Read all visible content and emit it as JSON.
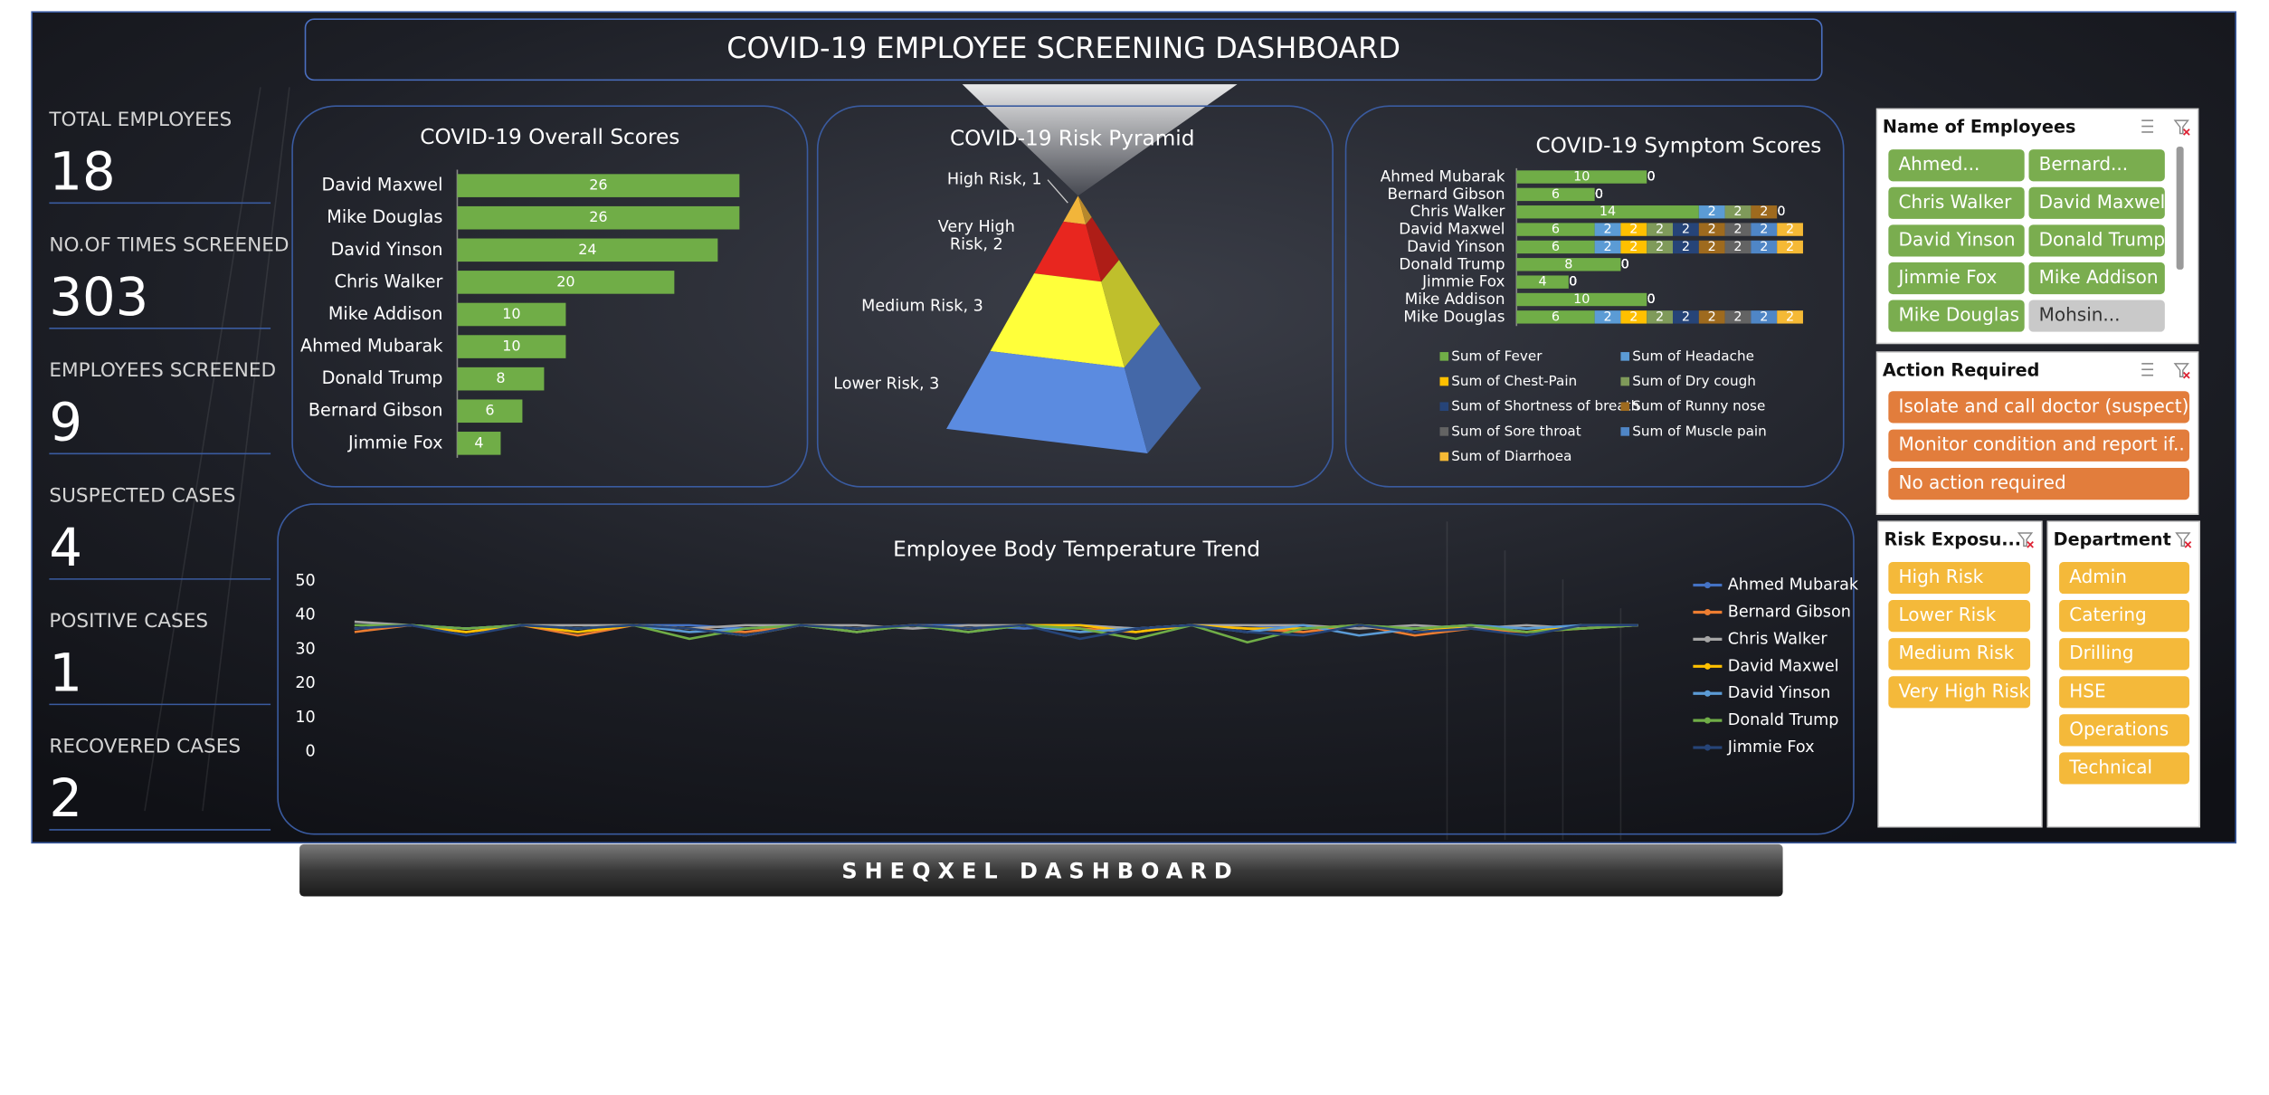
{
  "header": {
    "title": "COVID-19 EMPLOYEE SCREENING DASHBOARD"
  },
  "footer": {
    "title": "SHEQXEL DASHBOARD"
  },
  "kpis": [
    {
      "label": "TOTAL EMPLOYEES",
      "value": 18
    },
    {
      "label": "NO.OF TIMES SCREENED",
      "value": 303
    },
    {
      "label": "EMPLOYEES SCREENED",
      "value": 9
    },
    {
      "label": "SUSPECTED CASES",
      "value": 4
    },
    {
      "label": "POSITIVE CASES",
      "value": 1
    },
    {
      "label": "RECOVERED CASES",
      "value": 2
    }
  ],
  "chart_data": [
    {
      "type": "bar",
      "orientation": "horizontal",
      "title": "COVID-19 Overall Scores",
      "categories": [
        "David Maxwel",
        "Mike Douglas",
        "David Yinson",
        "Chris Walker",
        "Mike Addison",
        "Ahmed Mubarak",
        "Donald Trump",
        "Bernard Gibson",
        "Jimmie Fox"
      ],
      "values": [
        26,
        26,
        24,
        20,
        10,
        10,
        8,
        6,
        4
      ],
      "color": "#70ad47"
    },
    {
      "type": "pyramid",
      "title": "COVID-19 Risk Pyramid",
      "values": [
        1,
        2,
        3,
        3
      ],
      "value_labels": [
        "High Risk, 1",
        "Very High Risk, 2",
        "Medium Risk, 3",
        "Lower Risk, 3"
      ],
      "colors": [
        "#f2b53a",
        "#e8261f",
        "#ffff3a",
        "#5b8be0"
      ]
    },
    {
      "type": "stacked-bar",
      "orientation": "horizontal",
      "title": "COVID-19 Symptom Scores",
      "categories": [
        "Ahmed Mubarak",
        "Bernard Gibson",
        "Chris Walker",
        "David Maxwel",
        "David Yinson",
        "Donald Trump",
        "Jimmie Fox",
        "Mike Addison",
        "Mike Douglas"
      ],
      "series": [
        {
          "name": "Sum of Fever",
          "color": "#70ad47",
          "values": [
            10,
            6,
            14,
            6,
            6,
            8,
            4,
            10,
            6
          ]
        },
        {
          "name": "Sum of Headache",
          "color": "#5b9bd5",
          "values": [
            0,
            0,
            2,
            2,
            2,
            0,
            0,
            0,
            2
          ]
        },
        {
          "name": "Sum of Chest-Pain",
          "color": "#ffc000",
          "values": [
            0,
            0,
            0,
            2,
            2,
            0,
            0,
            0,
            2
          ]
        },
        {
          "name": "Sum of Dry cough",
          "color": "#7f9a5a",
          "values": [
            0,
            0,
            2,
            2,
            2,
            0,
            0,
            0,
            2
          ]
        },
        {
          "name": "Sum of Shortness of breath",
          "color": "#264478",
          "values": [
            0,
            0,
            0,
            2,
            2,
            0,
            0,
            0,
            2
          ]
        },
        {
          "name": "Sum of Runny nose",
          "color": "#9e6a1e",
          "values": [
            0,
            0,
            2,
            2,
            2,
            0,
            0,
            0,
            2
          ]
        },
        {
          "name": "Sum of Sore throat",
          "color": "#636363",
          "values": [
            0,
            0,
            0,
            2,
            2,
            0,
            0,
            0,
            2
          ]
        },
        {
          "name": "Sum of Muscle pain",
          "color": "#4f86c6",
          "values": [
            0,
            0,
            0,
            2,
            2,
            0,
            0,
            0,
            2
          ]
        },
        {
          "name": "Sum of Diarrhoea",
          "color": "#f5b935",
          "values": [
            0,
            0,
            0,
            2,
            2,
            0,
            0,
            0,
            2
          ]
        }
      ]
    },
    {
      "type": "line",
      "title": "Employee Body Temperature Trend",
      "ylim": [
        0,
        50
      ],
      "yticks": [
        0,
        10,
        20,
        30,
        40,
        50
      ],
      "series": [
        {
          "name": "Ahmed Mubarak",
          "color": "#4472c4",
          "values": [
            37,
            37,
            36,
            37,
            36,
            37,
            37,
            36,
            37,
            36,
            37,
            37,
            36,
            37,
            36,
            37,
            37,
            36,
            37,
            36,
            37,
            36,
            37,
            37
          ]
        },
        {
          "name": "Bernard Gibson",
          "color": "#ed7d31",
          "values": [
            35,
            37,
            35,
            37,
            34,
            37,
            36,
            35,
            37,
            35,
            37,
            36,
            37,
            36,
            35,
            37,
            36,
            35,
            37,
            34,
            36,
            35,
            36,
            37
          ]
        },
        {
          "name": "Chris Walker",
          "color": "#a5a5a5",
          "values": [
            38,
            37,
            36,
            37,
            37,
            37,
            36,
            37,
            37,
            37,
            36,
            37,
            37,
            37,
            36,
            37,
            37,
            37,
            36,
            37,
            36,
            37,
            36,
            37
          ]
        },
        {
          "name": "David Maxwel",
          "color": "#ffc000",
          "values": [
            36,
            37,
            35,
            37,
            35,
            37,
            36,
            34,
            37,
            36,
            37,
            36,
            37,
            37,
            35,
            37,
            36,
            36,
            37,
            35,
            37,
            35,
            37,
            37
          ]
        },
        {
          "name": "David Yinson",
          "color": "#5b9bd5",
          "values": [
            36,
            37,
            36,
            37,
            36,
            37,
            35,
            36,
            37,
            35,
            37,
            35,
            37,
            35,
            36,
            37,
            35,
            37,
            34,
            36,
            37,
            36,
            37,
            37
          ]
        },
        {
          "name": "Donald Trump",
          "color": "#70ad47",
          "values": [
            37,
            37,
            36,
            37,
            36,
            37,
            33,
            36,
            37,
            35,
            37,
            35,
            37,
            36,
            33,
            37,
            32,
            36,
            37,
            36,
            37,
            35,
            36,
            37
          ]
        },
        {
          "name": "Jimmie Fox",
          "color": "#264478",
          "values": [
            36,
            37,
            34,
            37,
            36,
            37,
            36,
            34,
            37,
            36,
            37,
            36,
            37,
            33,
            36,
            37,
            35,
            34,
            37,
            35,
            36,
            34,
            37,
            37
          ]
        }
      ]
    }
  ],
  "slicers": [
    {
      "title": "Name of Employees",
      "color": "#7aad4f",
      "inactive_color": "#c9c9c9",
      "items": [
        {
          "label": "Ahmed...",
          "active": true
        },
        {
          "label": "Bernard...",
          "active": true
        },
        {
          "label": "Chris Walker",
          "active": true
        },
        {
          "label": "David Maxwel",
          "active": true
        },
        {
          "label": "David Yinson",
          "active": true
        },
        {
          "label": "Donald Trump",
          "active": true
        },
        {
          "label": "Jimmie Fox",
          "active": true
        },
        {
          "label": "Mike Addison",
          "active": true
        },
        {
          "label": "Mike Douglas",
          "active": true
        },
        {
          "label": "Mohsin...",
          "active": false
        }
      ]
    },
    {
      "title": "Action Required",
      "color": "#e27d3c",
      "inactive_color": "#c9c9c9",
      "items": [
        {
          "label": "Isolate and call doctor (suspect)",
          "active": true
        },
        {
          "label": "Monitor condition and report if..",
          "active": true
        },
        {
          "label": "No action required",
          "active": true
        }
      ]
    },
    {
      "title": "Risk Exposu...",
      "color": "#f4b93a",
      "inactive_color": "#c9c9c9",
      "items": [
        {
          "label": "High Risk",
          "active": true
        },
        {
          "label": "Lower Risk",
          "active": true
        },
        {
          "label": "Medium Risk",
          "active": true
        },
        {
          "label": "Very High Risk",
          "active": true
        }
      ]
    },
    {
      "title": "Department",
      "color": "#f4b93a",
      "inactive_color": "#c9c9c9",
      "items": [
        {
          "label": "Admin",
          "active": true
        },
        {
          "label": "Catering",
          "active": true
        },
        {
          "label": "Drilling",
          "active": true
        },
        {
          "label": "HSE",
          "active": true
        },
        {
          "label": "Operations",
          "active": true
        },
        {
          "label": "Technical",
          "active": true
        }
      ]
    }
  ]
}
